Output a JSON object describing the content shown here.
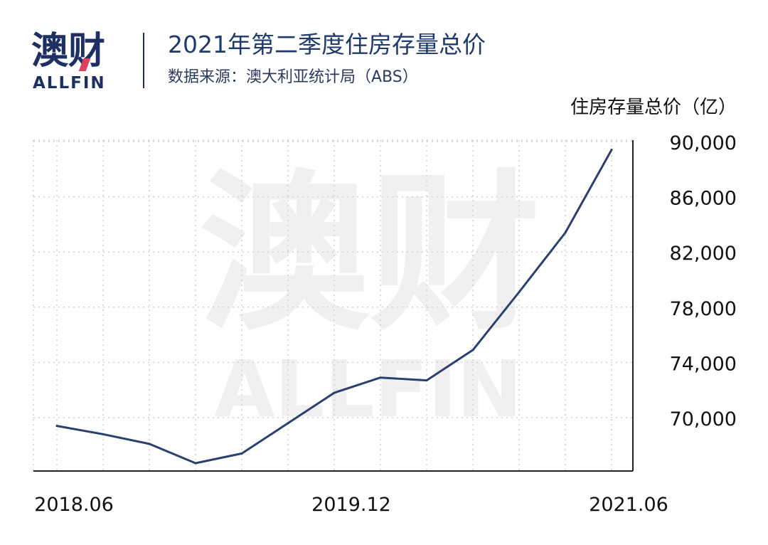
{
  "logo": {
    "cn": "澳财",
    "en": "ALLFIN"
  },
  "watermark": {
    "cn": "澳财",
    "en": "ALLFIN"
  },
  "header": {
    "title": "2021年第二季度住房存量总价",
    "subtitle": "数据来源：澳大利亚统计局（ABS）"
  },
  "colors": {
    "line": "#2a4170",
    "title": "#1e3a6e",
    "logo": "#1e2f63",
    "logo_accent": "#e0405f",
    "grid": "#d0d0d0",
    "watermark": "#f0f0f0"
  },
  "chart_data": {
    "type": "line",
    "title": "",
    "xlabel": "",
    "ylabel": "住房存量总价（亿）",
    "x": [
      "2018.06",
      "2018.09",
      "2018.12",
      "2019.03",
      "2019.06",
      "2019.09",
      "2019.12",
      "2020.03",
      "2020.06",
      "2020.09",
      "2020.12",
      "2021.03",
      "2021.06"
    ],
    "series": [
      {
        "values": [
          69400,
          68800,
          68100,
          66700,
          67400,
          69600,
          71800,
          72900,
          72700,
          74900,
          79100,
          83400,
          89400
        ]
      }
    ],
    "x_tick_labels": [
      "2018.06",
      "2019.12",
      "2021.06"
    ],
    "y_ticks": [
      70000,
      74000,
      78000,
      82000,
      86000,
      90000
    ],
    "y_tick_labels": [
      "70,000",
      "74,000",
      "78,000",
      "82,000",
      "86,000",
      "90,000"
    ],
    "ylim": [
      66000,
      90000
    ],
    "y_axis_position": "right",
    "grid": true
  }
}
